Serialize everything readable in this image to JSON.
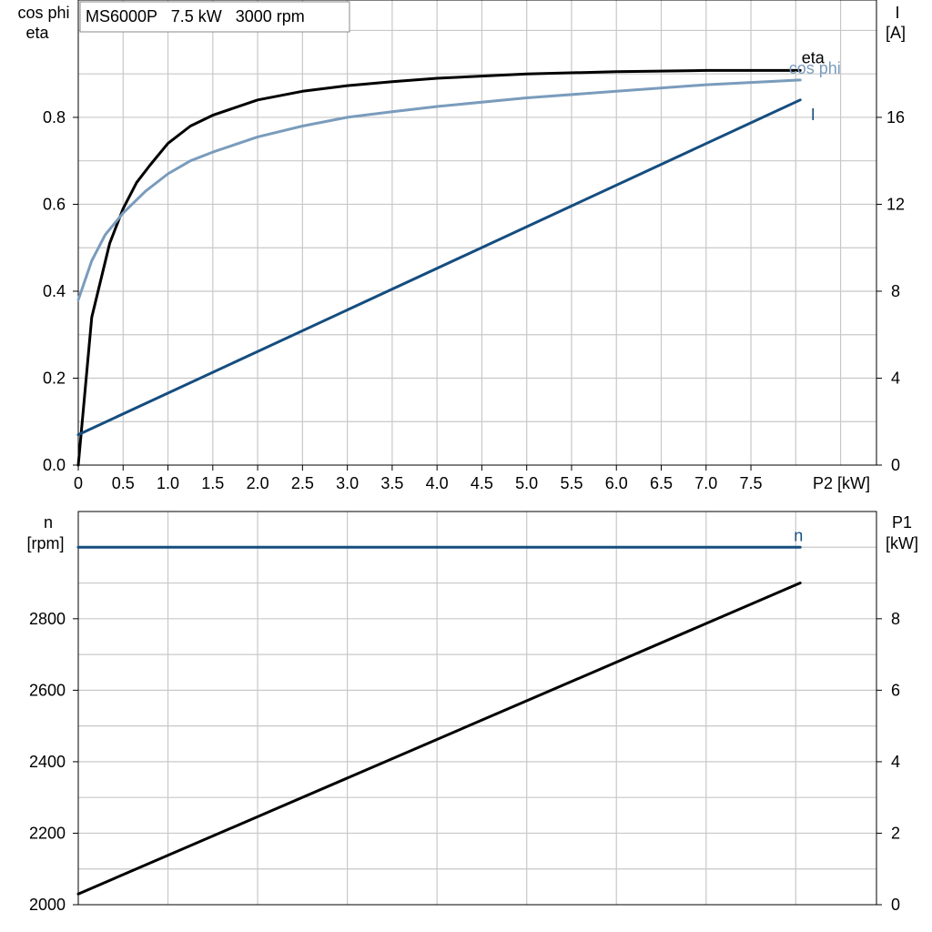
{
  "title": "MS6000P   7.5 kW   3000 rpm",
  "colors": {
    "eta": "#000000",
    "cos_phi": "#7a9cbc",
    "current": "#154d7f",
    "speed": "#154d7f",
    "p1": "#000000",
    "grid": "#c8c8c8"
  },
  "chart_data": [
    {
      "type": "line",
      "x_axis": {
        "label": "P2 [kW]",
        "range": [
          0,
          8.9
        ],
        "ticks": [
          "0",
          "0.5",
          "1.0",
          "1.5",
          "2.0",
          "2.5",
          "3.0",
          "3.5",
          "4.0",
          "4.5",
          "5.0",
          "5.5",
          "6.0",
          "6.5",
          "7.0",
          "7.5"
        ]
      },
      "y_left": {
        "label_line1": "cos phi",
        "label_line2": "eta",
        "range": [
          0,
          1.07
        ],
        "ticks": [
          "0.0",
          "0.2",
          "0.4",
          "0.6",
          "0.8"
        ]
      },
      "y_right": {
        "label_line1": "I",
        "label_line2": "[A]",
        "range": [
          0,
          21.4
        ],
        "ticks": [
          "0",
          "4",
          "8",
          "12",
          "16"
        ]
      },
      "series": [
        {
          "name": "eta",
          "axis": "left",
          "x": [
            0,
            0.15,
            0.35,
            0.5,
            0.65,
            0.8,
            1.0,
            1.25,
            1.5,
            2.0,
            2.5,
            3.0,
            3.5,
            4.0,
            5.0,
            6.0,
            7.0,
            8.05
          ],
          "y": [
            0,
            0.34,
            0.51,
            0.59,
            0.65,
            0.69,
            0.74,
            0.78,
            0.805,
            0.84,
            0.86,
            0.873,
            0.882,
            0.89,
            0.9,
            0.905,
            0.908,
            0.908
          ]
        },
        {
          "name": "cos phi",
          "axis": "left",
          "x": [
            0,
            0.15,
            0.3,
            0.5,
            0.75,
            1.0,
            1.25,
            1.5,
            2.0,
            2.5,
            3.0,
            3.5,
            4.0,
            5.0,
            6.0,
            7.0,
            8.05
          ],
          "y": [
            0.38,
            0.47,
            0.53,
            0.58,
            0.63,
            0.67,
            0.7,
            0.72,
            0.755,
            0.78,
            0.8,
            0.813,
            0.825,
            0.845,
            0.86,
            0.875,
            0.886
          ]
        },
        {
          "name": "I",
          "axis": "right",
          "x": [
            0,
            8.05
          ],
          "y": [
            1.4,
            16.8
          ]
        }
      ]
    },
    {
      "type": "line",
      "x_axis": {
        "range": [
          0,
          8.9
        ]
      },
      "y_left": {
        "label_line1": "n",
        "label_line2": "[rpm]",
        "range": [
          2000,
          3100
        ],
        "ticks": [
          "2000",
          "2200",
          "2400",
          "2600",
          "2800"
        ]
      },
      "y_right": {
        "label_line1": "P1",
        "label_line2": "[kW]",
        "range": [
          0,
          11
        ],
        "ticks": [
          "0",
          "2",
          "4",
          "6",
          "8"
        ]
      },
      "series": [
        {
          "name": "n",
          "axis": "left",
          "x": [
            0,
            8.05
          ],
          "y": [
            3000,
            3000
          ]
        },
        {
          "axis": "right",
          "x": [
            0,
            8.05
          ],
          "y": [
            0.3,
            9.0
          ]
        }
      ]
    }
  ]
}
